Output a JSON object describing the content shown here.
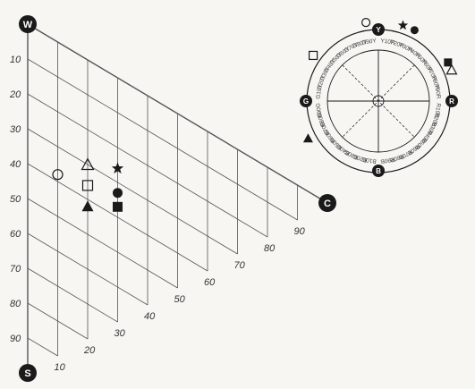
{
  "triangle": {
    "corners": {
      "w": "W",
      "c": "C",
      "s": "S"
    },
    "whiteness_ticks": [
      "10",
      "20",
      "30",
      "40",
      "50",
      "60",
      "70",
      "80",
      "90"
    ],
    "chromaticness_ticks": [
      "10",
      "20",
      "30",
      "40",
      "50",
      "60",
      "70",
      "80",
      "90"
    ],
    "samples": [
      {
        "shape": "open-circle",
        "chromaticness": 10,
        "blackness": 38
      },
      {
        "shape": "open-triangle",
        "chromaticness": 20,
        "blackness": 30
      },
      {
        "shape": "open-square",
        "chromaticness": 20,
        "blackness": 36
      },
      {
        "shape": "star",
        "chromaticness": 30,
        "blackness": 26
      },
      {
        "shape": "filled-triangle",
        "chromaticness": 20,
        "blackness": 42
      },
      {
        "shape": "filled-circle",
        "chromaticness": 30,
        "blackness": 33
      },
      {
        "shape": "filled-square",
        "chromaticness": 30,
        "blackness": 37
      }
    ]
  },
  "hue_circle": {
    "poles": {
      "top": "Y",
      "right": "R",
      "bottom": "B",
      "left": "G"
    },
    "hue_labels": [
      "Y10R",
      "Y20R",
      "Y30R",
      "Y40R",
      "Y50R",
      "Y60R",
      "Y70R",
      "Y80R",
      "Y90R",
      "R",
      "R10B",
      "R20B",
      "R30B",
      "R40B",
      "R50B",
      "R60B",
      "R70B",
      "R80B",
      "R90B",
      "B",
      "B10G",
      "B20G",
      "B30G",
      "B40G",
      "B50G",
      "B60G",
      "B70G",
      "B80G",
      "B90G",
      "G",
      "G10Y",
      "G20Y",
      "G30Y",
      "G40Y",
      "G50Y",
      "G60Y",
      "G70Y",
      "G80Y",
      "G90Y",
      "Y"
    ],
    "samples": [
      {
        "shape": "open-circle",
        "hue_deg": -9
      },
      {
        "shape": "star",
        "hue_deg": 18
      },
      {
        "shape": "filled-circle",
        "hue_deg": 27
      },
      {
        "shape": "filled-square",
        "hue_deg": 61
      },
      {
        "shape": "open-triangle",
        "hue_deg": 67
      },
      {
        "shape": "open-square",
        "hue_deg": -55
      },
      {
        "shape": "filled-triangle",
        "hue_deg": -118
      }
    ]
  },
  "colors": {
    "ink": "#1a1a1a",
    "grid": "#555555",
    "paper": "#f7f6f2"
  }
}
